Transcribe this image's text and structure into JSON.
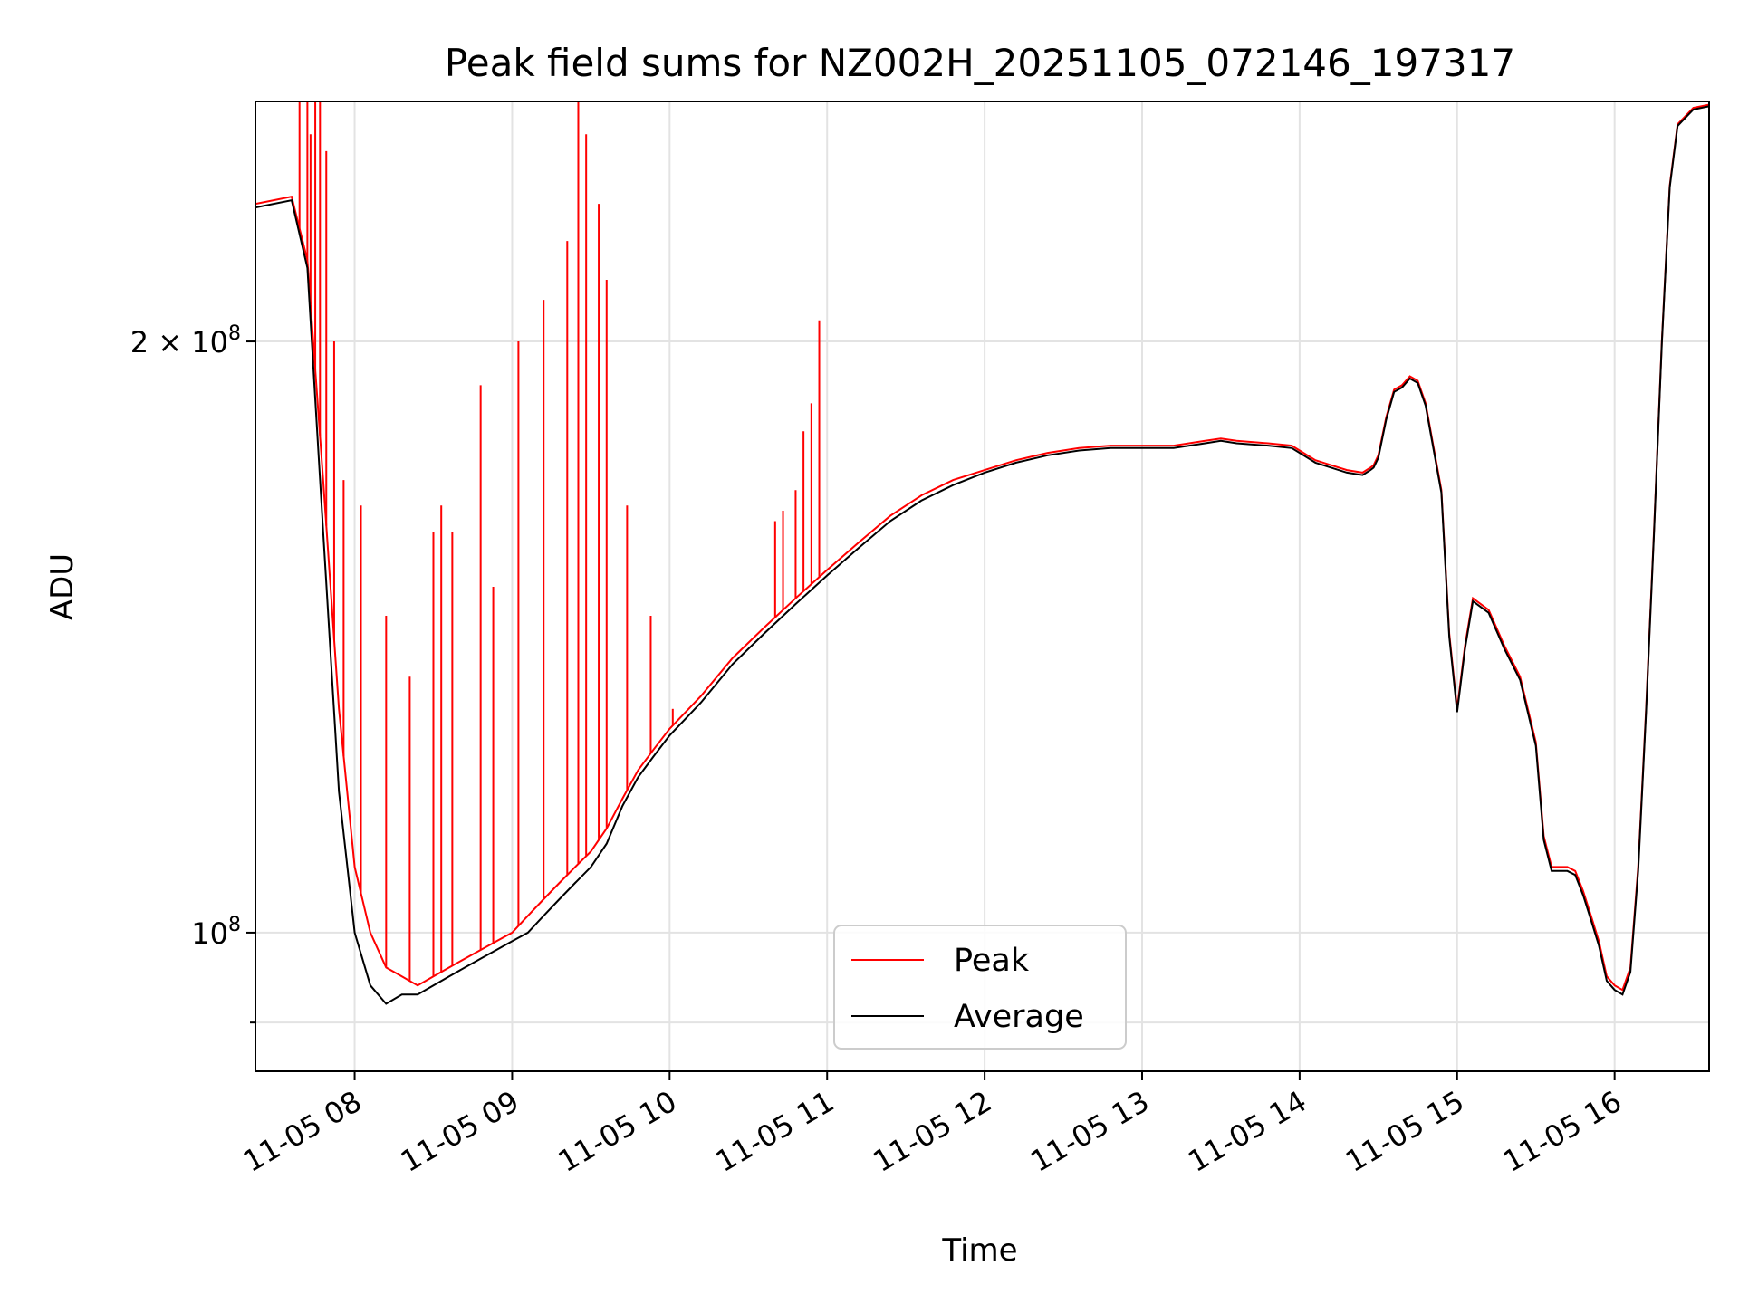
{
  "chart_data": {
    "type": "line",
    "title": "Peak field sums for NZ002H_20251105_072146_197317",
    "xlabel": "Time",
    "ylabel": "ADU",
    "yscale": "log",
    "ylim": [
      85000000,
      265000000
    ],
    "xlim_hours": [
      7.37,
      16.6
    ],
    "grid": true,
    "legend_position": "bottom-center",
    "x_ticks": [
      {
        "value": 8,
        "label": "11-05 08"
      },
      {
        "value": 9,
        "label": "11-05 09"
      },
      {
        "value": 10,
        "label": "11-05 10"
      },
      {
        "value": 11,
        "label": "11-05 11"
      },
      {
        "value": 12,
        "label": "11-05 12"
      },
      {
        "value": 13,
        "label": "11-05 13"
      },
      {
        "value": 14,
        "label": "11-05 14"
      },
      {
        "value": 15,
        "label": "11-05 15"
      },
      {
        "value": 16,
        "label": "11-05 16"
      }
    ],
    "y_ticks": [
      {
        "value": 100000000,
        "base": "10",
        "exp": "8",
        "mult": ""
      },
      {
        "value": 200000000,
        "base": "10",
        "exp": "8",
        "mult": "2 × "
      }
    ],
    "series": [
      {
        "name": "Peak",
        "color": "#ff0000",
        "x_hours": [
          7.37,
          7.6,
          7.7,
          7.8,
          7.9,
          8.0,
          8.1,
          8.2,
          8.3,
          8.4,
          8.5,
          8.6,
          8.7,
          8.8,
          8.9,
          9.0,
          9.1,
          9.2,
          9.3,
          9.4,
          9.5,
          9.6,
          9.7,
          9.8,
          9.9,
          10.0,
          10.2,
          10.4,
          10.6,
          10.8,
          11.0,
          11.2,
          11.4,
          11.6,
          11.8,
          12.0,
          12.2,
          12.4,
          12.6,
          12.8,
          13.0,
          13.2,
          13.4,
          13.5,
          13.6,
          13.8,
          13.95,
          14.0,
          14.1,
          14.2,
          14.3,
          14.4,
          14.45,
          14.47,
          14.5,
          14.55,
          14.6,
          14.65,
          14.7,
          14.75,
          14.8,
          14.9,
          14.95,
          15.0,
          15.05,
          15.1,
          15.2,
          15.3,
          15.4,
          15.5,
          15.55,
          15.6,
          15.65,
          15.7,
          15.75,
          15.8,
          15.85,
          15.9,
          15.95,
          16.0,
          16.05,
          16.1,
          16.15,
          16.2,
          16.25,
          16.3,
          16.35,
          16.4,
          16.5,
          16.6
        ],
        "y": [
          235000000,
          237000000,
          220000000,
          170000000,
          130000000,
          108000000,
          100000000,
          96000000,
          95000000,
          94000000,
          95000000,
          96000000,
          97000000,
          98000000,
          99000000,
          100000000,
          102000000,
          104000000,
          106000000,
          108000000,
          110000000,
          113000000,
          117000000,
          121000000,
          124000000,
          127000000,
          132000000,
          138000000,
          143000000,
          148000000,
          153000000,
          158000000,
          163000000,
          167000000,
          170000000,
          172000000,
          174000000,
          175500000,
          176500000,
          177000000,
          177000000,
          177000000,
          178000000,
          178500000,
          178000000,
          177500000,
          177000000,
          176000000,
          174000000,
          173000000,
          172000000,
          171500000,
          172500000,
          173000000,
          175000000,
          183000000,
          189000000,
          190000000,
          192000000,
          191000000,
          186000000,
          168000000,
          142000000,
          130000000,
          140000000,
          148000000,
          146000000,
          140000000,
          135000000,
          125000000,
          112000000,
          108000000,
          108000000,
          108000000,
          107500000,
          105000000,
          102000000,
          99000000,
          95000000,
          94000000,
          93500000,
          96000000,
          108000000,
          130000000,
          160000000,
          200000000,
          240000000,
          258000000,
          263000000,
          264000000
        ],
        "spike_x_hours": [
          7.65,
          7.7,
          7.72,
          7.75,
          7.78,
          7.82,
          7.87,
          7.93,
          8.04,
          8.2,
          8.35,
          8.5,
          8.55,
          8.62,
          8.8,
          8.88,
          9.04,
          9.2,
          9.35,
          9.42,
          9.47,
          9.55,
          9.6,
          9.73,
          9.88,
          10.02,
          10.67,
          10.72,
          10.8,
          10.85,
          10.9,
          10.95
        ],
        "spike_y": [
          265000000,
          265000000,
          255000000,
          265000000,
          265000000,
          250000000,
          200000000,
          170000000,
          165000000,
          145000000,
          135000000,
          160000000,
          165000000,
          160000000,
          190000000,
          150000000,
          200000000,
          210000000,
          225000000,
          265000000,
          255000000,
          235000000,
          215000000,
          165000000,
          145000000,
          130000000,
          162000000,
          164000000,
          168000000,
          180000000,
          186000000,
          205000000
        ]
      },
      {
        "name": "Average",
        "color": "#000000",
        "x_hours": [
          7.37,
          7.6,
          7.7,
          7.8,
          7.9,
          8.0,
          8.1,
          8.2,
          8.3,
          8.4,
          8.5,
          8.6,
          8.7,
          8.8,
          8.9,
          9.0,
          9.1,
          9.2,
          9.3,
          9.4,
          9.5,
          9.6,
          9.7,
          9.8,
          9.9,
          10.0,
          10.2,
          10.4,
          10.6,
          10.8,
          11.0,
          11.2,
          11.4,
          11.6,
          11.8,
          12.0,
          12.2,
          12.4,
          12.6,
          12.8,
          13.0,
          13.2,
          13.4,
          13.5,
          13.6,
          13.8,
          13.95,
          14.0,
          14.1,
          14.2,
          14.3,
          14.4,
          14.45,
          14.47,
          14.5,
          14.55,
          14.6,
          14.65,
          14.7,
          14.75,
          14.8,
          14.9,
          14.95,
          15.0,
          15.05,
          15.1,
          15.2,
          15.3,
          15.4,
          15.5,
          15.55,
          15.6,
          15.65,
          15.7,
          15.75,
          15.8,
          15.85,
          15.9,
          15.95,
          16.0,
          16.05,
          16.1,
          16.15,
          16.2,
          16.25,
          16.3,
          16.35,
          16.4,
          16.5,
          16.6
        ],
        "y": [
          234000000,
          236000000,
          218000000,
          160000000,
          118000000,
          100000000,
          94000000,
          92000000,
          93000000,
          93000000,
          94000000,
          95000000,
          96000000,
          97000000,
          98000000,
          99000000,
          100000000,
          102000000,
          104000000,
          106000000,
          108000000,
          111000000,
          116000000,
          120000000,
          123000000,
          126000000,
          131000000,
          137000000,
          142000000,
          147000000,
          152000000,
          157000000,
          162000000,
          166000000,
          169000000,
          171500000,
          173500000,
          175000000,
          176000000,
          176500000,
          176500000,
          176500000,
          177500000,
          178000000,
          177500000,
          177000000,
          176500000,
          175500000,
          173500000,
          172500000,
          171500000,
          171000000,
          172000000,
          172500000,
          174500000,
          182500000,
          188500000,
          189500000,
          191500000,
          190500000,
          185500000,
          167500000,
          141500000,
          129500000,
          139500000,
          147500000,
          145500000,
          139500000,
          134500000,
          124500000,
          111500000,
          107500000,
          107500000,
          107500000,
          107000000,
          104500000,
          101500000,
          98500000,
          94500000,
          93500000,
          93000000,
          95500000,
          107500000,
          129500000,
          159500000,
          199500000,
          239500000,
          257500000,
          262500000,
          263500000
        ]
      }
    ]
  }
}
